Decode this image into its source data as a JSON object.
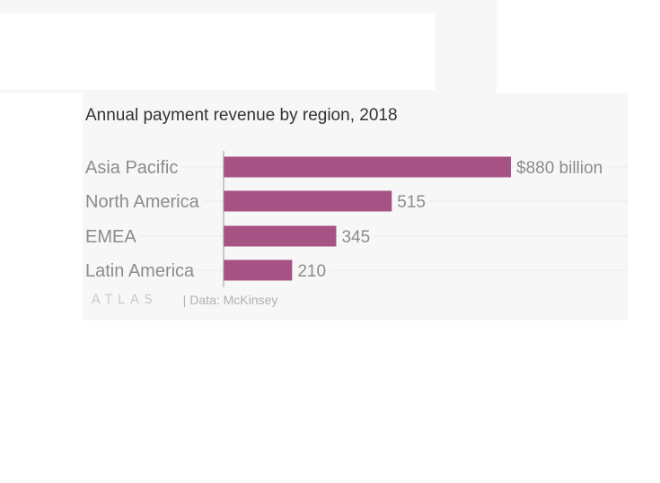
{
  "chart": {
    "title": "Annual payment revenue by region, 2018",
    "logo": "ATLAS",
    "source": "Data: McKinsey",
    "colors": {
      "bar": "#a65285",
      "background": "#f7f7f7",
      "text": "#8c8c8c"
    }
  },
  "chart_data": {
    "type": "bar",
    "orientation": "horizontal",
    "title": "Annual payment revenue by region, 2018",
    "categories": [
      "Asia Pacific",
      "North America",
      "EMEA",
      "Latin America"
    ],
    "values": [
      880,
      515,
      345,
      210
    ],
    "value_labels": [
      "$880 billion",
      "515",
      "345",
      "210"
    ],
    "unit": "billion USD",
    "xlim": [
      0,
      880
    ],
    "grid": false,
    "legend": "none"
  }
}
